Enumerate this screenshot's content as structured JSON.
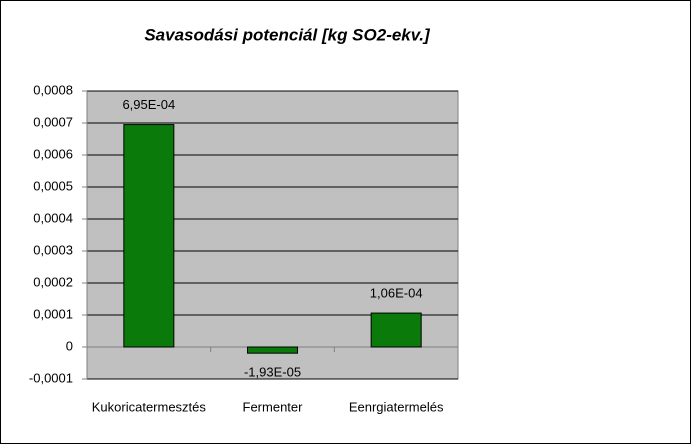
{
  "chart_data": {
    "type": "bar",
    "title": "Savasodási potenciál [kg SO2-ekv.]",
    "categories": [
      "Kukoricatermesztés",
      "Fermenter",
      "Eenrgiatermelés"
    ],
    "values": [
      0.000695,
      -1.93e-05,
      0.000106
    ],
    "value_labels": [
      "6,95E-04",
      "-1,93E-05",
      "1,06E-04"
    ],
    "color": "#0a7a0a",
    "ylim": [
      -0.0001,
      0.0008
    ],
    "yticks": [
      {
        "value": -0.0001,
        "label": "-0,0001"
      },
      0,
      {
        "value": 0.0001,
        "label": "0,0001"
      },
      {
        "value": 0.0002,
        "label": "0,0002"
      },
      {
        "value": 0.0003,
        "label": "0,0003"
      },
      {
        "value": 0.0004,
        "label": "0,0004"
      },
      {
        "value": 0.0005,
        "label": "0,0005"
      },
      {
        "value": 0.0006,
        "label": "0,0006"
      },
      {
        "value": 0.0007,
        "label": "0,0007"
      },
      {
        "value": 0.0008,
        "label": "0,0008"
      }
    ],
    "grid": true
  }
}
